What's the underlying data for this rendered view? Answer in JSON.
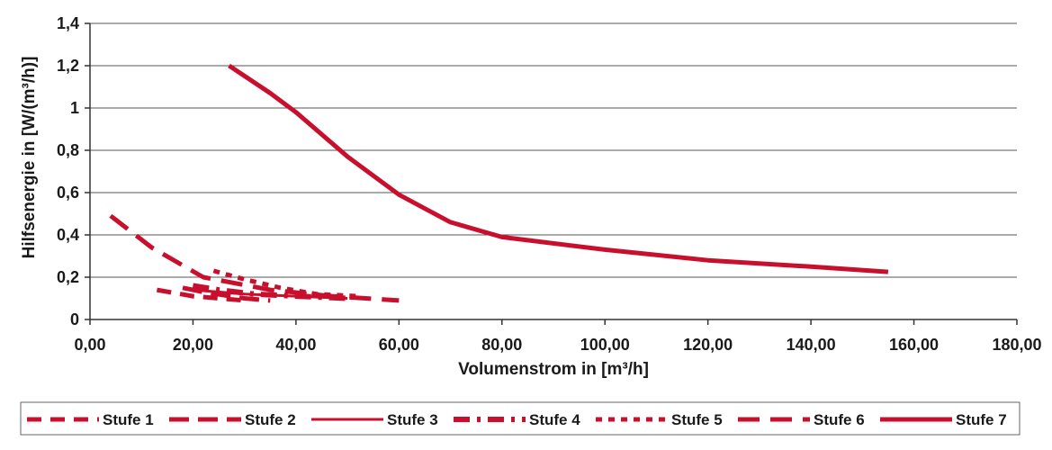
{
  "chart_data": {
    "type": "line",
    "xlabel": "Volumenstrom in [m³/h]",
    "ylabel": "Hilfsenergie in [W/(m³/h)]",
    "xlim": [
      0,
      180
    ],
    "ylim": [
      0,
      1.4
    ],
    "x_ticks": [
      "0,00",
      "20,00",
      "40,00",
      "60,00",
      "80,00",
      "100,00",
      "120,00",
      "140,00",
      "160,00",
      "180,00"
    ],
    "y_ticks": [
      "0",
      "0,2",
      "0,4",
      "0,6",
      "0,8",
      "1",
      "1,2",
      "1,4"
    ],
    "grid": "horizontal",
    "legend_position": "bottom",
    "line_color": "#c8102e",
    "series": [
      {
        "name": "Stufe 1",
        "points": [
          [
            13,
            0.14
          ],
          [
            20,
            0.11
          ],
          [
            25,
            0.1
          ],
          [
            30,
            0.09
          ]
        ]
      },
      {
        "name": "Stufe 2",
        "points": [
          [
            18,
            0.15
          ],
          [
            22,
            0.13
          ],
          [
            30,
            0.1
          ],
          [
            35,
            0.09
          ]
        ]
      },
      {
        "name": "Stufe 3",
        "points": [
          [
            20,
            0.14
          ],
          [
            30,
            0.12
          ],
          [
            40,
            0.11
          ],
          [
            50,
            0.1
          ]
        ]
      },
      {
        "name": "Stufe 4",
        "points": [
          [
            20,
            0.16
          ],
          [
            25,
            0.14
          ],
          [
            32,
            0.12
          ],
          [
            40,
            0.11
          ],
          [
            50,
            0.1
          ]
        ]
      },
      {
        "name": "Stufe 5",
        "points": [
          [
            24,
            0.23
          ],
          [
            30,
            0.19
          ],
          [
            37,
            0.15
          ],
          [
            44,
            0.12
          ],
          [
            52,
            0.11
          ]
        ]
      },
      {
        "name": "Stufe 6",
        "points": [
          [
            4,
            0.49
          ],
          [
            12,
            0.34
          ],
          [
            22,
            0.2
          ],
          [
            35,
            0.14
          ],
          [
            47,
            0.11
          ],
          [
            60,
            0.09
          ]
        ]
      },
      {
        "name": "Stufe 7",
        "points": [
          [
            27,
            1.2
          ],
          [
            35,
            1.07
          ],
          [
            40,
            0.98
          ],
          [
            50,
            0.77
          ],
          [
            60,
            0.59
          ],
          [
            70,
            0.46
          ],
          [
            80,
            0.39
          ],
          [
            100,
            0.33
          ],
          [
            120,
            0.28
          ],
          [
            140,
            0.25
          ],
          [
            155,
            0.225
          ]
        ]
      }
    ]
  }
}
